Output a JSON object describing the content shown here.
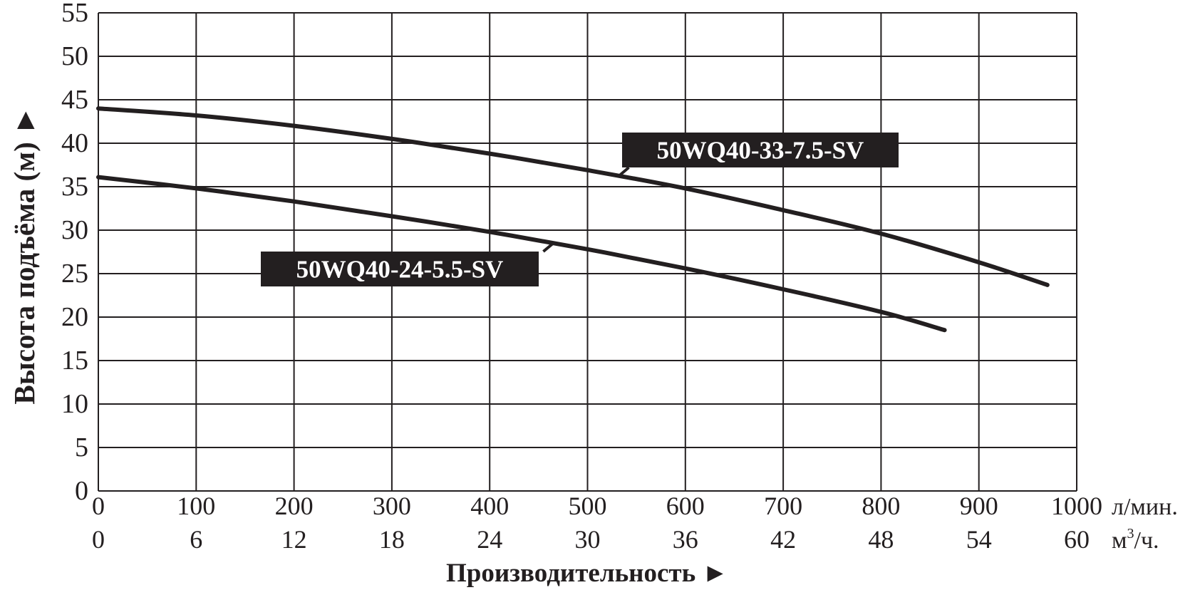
{
  "chart_data": {
    "type": "line",
    "title": "",
    "xlabel": "Производительность ►",
    "ylabel": "Высота подъёма (м) ►",
    "xlim": [
      0,
      1000
    ],
    "ylim": [
      0,
      55
    ],
    "grid": true,
    "x_ticks": [
      "0",
      "100",
      "200",
      "300",
      "400",
      "500",
      "600",
      "700",
      "800",
      "900",
      "1000"
    ],
    "x_ticks_unit": "л/мин.",
    "x2_ticks": [
      "0",
      "6",
      "12",
      "18",
      "24",
      "30",
      "36",
      "42",
      "48",
      "54",
      "60"
    ],
    "x2_unit_base": "м",
    "x2_unit_sup": "3",
    "x2_unit_tail": "/ч.",
    "y_ticks": [
      "0",
      "5",
      "10",
      "15",
      "20",
      "25",
      "30",
      "35",
      "40",
      "45",
      "50",
      "55"
    ],
    "series": [
      {
        "name": "50WQ40-33-7.5-SV",
        "x": [
          0,
          100,
          200,
          300,
          400,
          500,
          600,
          700,
          800,
          900,
          970
        ],
        "y": [
          44,
          43.2,
          42,
          40.5,
          38.8,
          36.9,
          34.8,
          32.3,
          29.6,
          26.3,
          23.7
        ]
      },
      {
        "name": "50WQ40-24-5.5-SV",
        "x": [
          0,
          100,
          200,
          300,
          400,
          500,
          600,
          700,
          800,
          865
        ],
        "y": [
          36.1,
          34.8,
          33.3,
          31.6,
          29.8,
          27.8,
          25.6,
          23.2,
          20.6,
          18.5
        ]
      }
    ],
    "annotations": [
      {
        "text": "50WQ40-33-7.5-SV",
        "series": 0
      },
      {
        "text": "50WQ40-24-5.5-SV",
        "series": 1
      }
    ],
    "colors": {
      "line": "#231f20",
      "grid": "#231f20",
      "label_bg": "#231f20",
      "label_text": "#ffffff"
    }
  }
}
